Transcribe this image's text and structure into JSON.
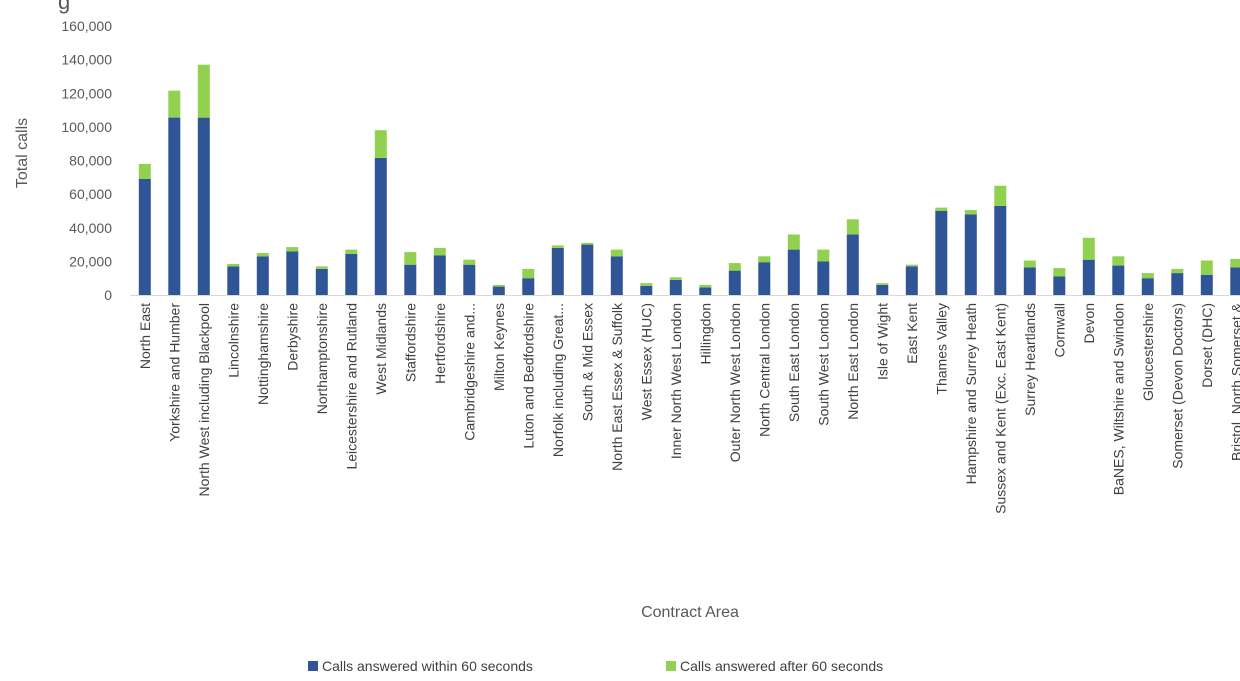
{
  "chart_data": {
    "type": "bar",
    "stacked": true,
    "title": "",
    "xlabel": "Contract Area",
    "ylabel": "Total calls",
    "ylim": [
      0,
      160000
    ],
    "yticks": [
      "0",
      "20,000",
      "40,000",
      "60,000",
      "80,000",
      "100,000",
      "120,000",
      "140,000",
      "160,000"
    ],
    "grid": false,
    "legend_position": "bottom",
    "categories": [
      "North East",
      "Yorkshire and Humber",
      "North West including Blackpool",
      "Lincolnshire",
      "Nottinghamshire",
      "Derbyshire",
      "Northamptonshire",
      "Leicestershire and Rutland",
      "West Midlands",
      "Staffordshire",
      "Hertfordshire",
      "Cambridgeshire and...",
      "Milton Keynes",
      "Luton and Bedfordshire",
      "Norfolk including Great...",
      "South & Mid Essex",
      "North East Essex & Suffolk",
      "West Essex (HUC)",
      "Inner North West London",
      "Hillingdon",
      "Outer North West London",
      "North Central London",
      "South East London",
      "South West London",
      "North East London",
      "Isle of Wight",
      "East Kent",
      "Thames Valley",
      "Hampshire and Surrey Heath",
      "Sussex and Kent (Exc. East Kent)",
      "Surrey Heartlands",
      "Cornwall",
      "Devon",
      "BaNES, Wiltshire and Swindon",
      "Gloucestershire",
      "Somerset (Devon Doctors)",
      "Dorset (DHC)",
      "Bristol, North Somerset &"
    ],
    "series": [
      {
        "name": "Calls answered within 60 seconds",
        "color": "#2F5597",
        "values": [
          69000,
          105500,
          105500,
          17000,
          23000,
          26000,
          15500,
          24500,
          81500,
          18000,
          23500,
          18000,
          5000,
          10000,
          28000,
          30000,
          23000,
          5500,
          9000,
          4500,
          14500,
          19500,
          27000,
          20000,
          36000,
          6000,
          17000,
          50000,
          48000,
          53000,
          16500,
          11000,
          21000,
          17500,
          10000,
          13000,
          12000,
          16500
        ]
      },
      {
        "name": "Calls answered after 60 seconds",
        "color": "#92D050",
        "values": [
          9000,
          16000,
          31500,
          1500,
          2000,
          2500,
          1500,
          2500,
          16500,
          7500,
          4500,
          3000,
          1000,
          5500,
          1500,
          1000,
          4000,
          1500,
          1500,
          1500,
          4500,
          3500,
          9000,
          7000,
          9000,
          1000,
          1000,
          2000,
          2500,
          12000,
          4000,
          5000,
          13000,
          5500,
          3000,
          2500,
          8500,
          5000
        ]
      }
    ]
  },
  "chart_title_fragment": "g"
}
